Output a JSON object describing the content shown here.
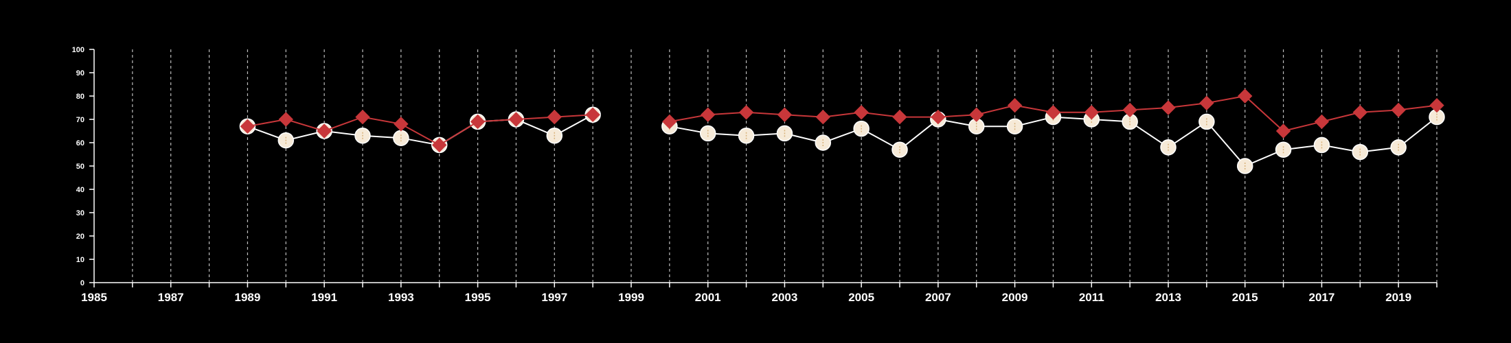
{
  "chart_data": {
    "type": "line",
    "xlim": [
      1985,
      2020
    ],
    "ylim": [
      0,
      100
    ],
    "y_ticks": [
      0,
      10,
      20,
      30,
      40,
      50,
      60,
      70,
      80,
      90,
      100
    ],
    "x_tick_labels": [
      1985,
      1987,
      1989,
      1991,
      1993,
      1995,
      1997,
      1999,
      2001,
      2003,
      2005,
      2007,
      2009,
      2011,
      2013,
      2015,
      2017,
      2019
    ],
    "grid": "vertical-dashed-yearly",
    "series": [
      {
        "marker": "circle",
        "color": "#ffffff",
        "marker_fill": "#f6ead8",
        "x": [
          1989,
          1990,
          1991,
          1992,
          1993,
          1994,
          1995,
          1996,
          1997,
          1998,
          2000,
          2001,
          2002,
          2003,
          2004,
          2005,
          2006,
          2007,
          2008,
          2009,
          2010,
          2011,
          2012,
          2013,
          2014,
          2015,
          2016,
          2017,
          2018,
          2019,
          2020
        ],
        "values": [
          67,
          61,
          65,
          63,
          62,
          59,
          69,
          70,
          63,
          72,
          67,
          64,
          63,
          64,
          60,
          66,
          57,
          70,
          67,
          67,
          71,
          70,
          69,
          58,
          69,
          50,
          57,
          59,
          56,
          58,
          71
        ]
      },
      {
        "marker": "diamond",
        "color": "#c8373a",
        "marker_fill": "#c8373a",
        "x": [
          1989,
          1990,
          1991,
          1992,
          1993,
          1994,
          1995,
          1996,
          1997,
          1998,
          2000,
          2001,
          2002,
          2003,
          2004,
          2005,
          2006,
          2007,
          2008,
          2009,
          2010,
          2011,
          2012,
          2013,
          2014,
          2015,
          2016,
          2017,
          2018,
          2019,
          2020
        ],
        "values": [
          67,
          70,
          65,
          71,
          68,
          59,
          69,
          70,
          71,
          72,
          69,
          72,
          73,
          72,
          71,
          73,
          71,
          71,
          72,
          76,
          73,
          73,
          74,
          75,
          77,
          80,
          65,
          69,
          73,
          74,
          76
        ]
      }
    ]
  }
}
